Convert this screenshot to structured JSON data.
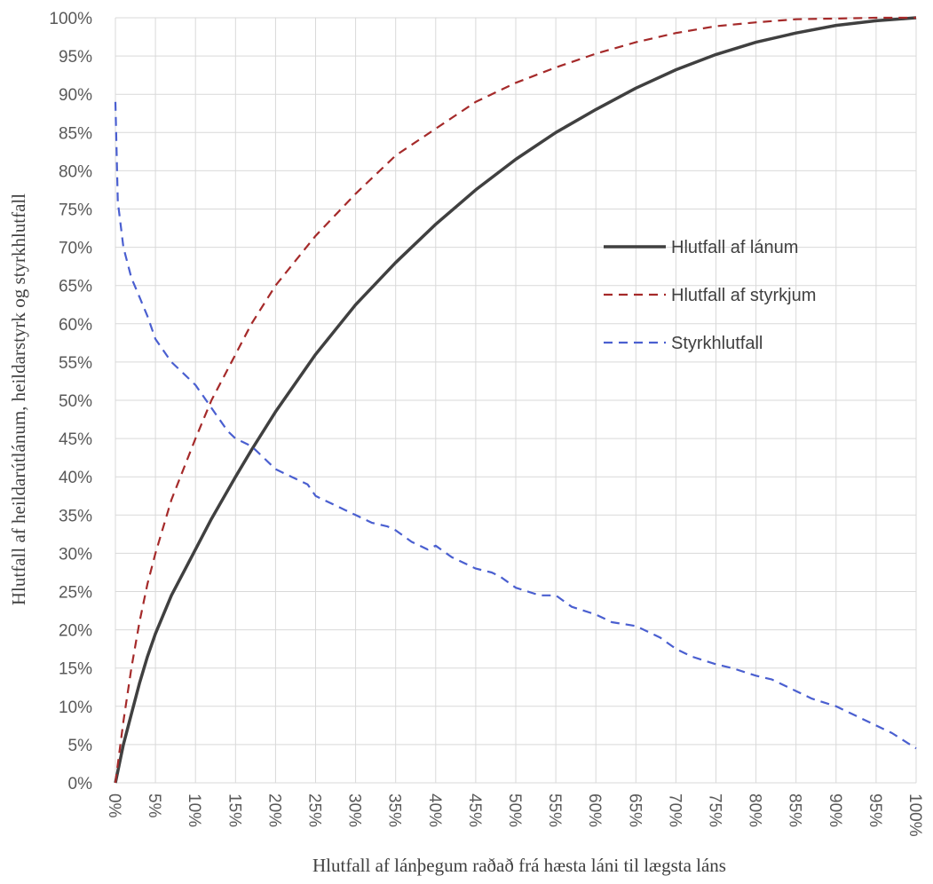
{
  "chart_data": {
    "type": "line",
    "title": "",
    "xlabel": "Hlutfall af lánþegum raðað frá hæsta láni til lægsta láns",
    "ylabel": "Hlutfall af heildarútlánum, heildarstyrk og styrkhlutfall",
    "xlim": [
      0,
      100
    ],
    "ylim": [
      0,
      100
    ],
    "x_unit": "%",
    "y_unit": "%",
    "grid": true,
    "legend_position": "right",
    "x_ticks": [
      "0%",
      "5%",
      "10%",
      "15%",
      "20%",
      "25%",
      "30%",
      "35%",
      "40%",
      "45%",
      "50%",
      "55%",
      "60%",
      "65%",
      "70%",
      "75%",
      "80%",
      "85%",
      "90%",
      "95%",
      "100%"
    ],
    "y_ticks": [
      "0%",
      "5%",
      "10%",
      "15%",
      "20%",
      "25%",
      "30%",
      "35%",
      "40%",
      "45%",
      "50%",
      "55%",
      "60%",
      "65%",
      "70%",
      "75%",
      "80%",
      "85%",
      "90%",
      "95%",
      "100%"
    ],
    "series": [
      {
        "name": "Hlutfall af lánum",
        "color": "#404040",
        "dash": "solid",
        "x": [
          0,
          1,
          2,
          3,
          4,
          5,
          7,
          10,
          12,
          15,
          17,
          20,
          25,
          30,
          35,
          40,
          45,
          50,
          55,
          60,
          65,
          70,
          75,
          80,
          85,
          90,
          95,
          100
        ],
        "y": [
          0,
          5,
          9,
          13,
          16.5,
          19.5,
          24.5,
          30.5,
          34.5,
          40,
          43.5,
          48.5,
          56,
          62.5,
          68,
          73,
          77.5,
          81.5,
          85,
          88,
          90.8,
          93.2,
          95.2,
          96.8,
          98,
          99,
          99.6,
          100
        ]
      },
      {
        "name": "Hlutfall af styrkjum",
        "color": "#a52a2a",
        "dash": "dashed",
        "x": [
          0,
          1,
          2,
          3,
          4,
          5,
          7,
          10,
          12,
          15,
          17,
          20,
          25,
          30,
          35,
          40,
          45,
          50,
          55,
          60,
          65,
          70,
          75,
          80,
          85,
          90,
          95,
          100
        ],
        "y": [
          0,
          8,
          15,
          21,
          26,
          30,
          37,
          45,
          50,
          56,
          60,
          65,
          71.5,
          77,
          82,
          85.5,
          89,
          91.5,
          93.5,
          95.3,
          96.8,
          98,
          98.9,
          99.4,
          99.8,
          99.9,
          100,
          100
        ]
      },
      {
        "name": "Styrkhlutfall",
        "color": "#4a5fd0",
        "dash": "dashed",
        "x": [
          0,
          0.3,
          1,
          2,
          3,
          4,
          5,
          7,
          8,
          10,
          12,
          14,
          15,
          17,
          18,
          20,
          22,
          24,
          25,
          27,
          30,
          32,
          34,
          35,
          37,
          39,
          40,
          42,
          45,
          47,
          48,
          50,
          53,
          55,
          57,
          60,
          62,
          65,
          67,
          68,
          70,
          72,
          75,
          77,
          80,
          82,
          85,
          87,
          90,
          92,
          95,
          97,
          100
        ],
        "y": [
          89,
          76,
          70,
          66,
          63.5,
          61,
          58,
          55,
          54,
          52,
          49,
          46,
          45,
          44,
          43,
          41,
          40,
          39,
          37.5,
          36.5,
          35,
          34,
          33.5,
          33,
          31.5,
          30.5,
          31,
          29.5,
          28,
          27.5,
          27,
          25.5,
          24.5,
          24.5,
          23,
          22,
          21,
          20.5,
          19.5,
          19,
          17.5,
          16.5,
          15.5,
          15,
          14,
          13.5,
          12,
          11,
          10,
          9,
          7.5,
          6.5,
          4.5
        ]
      }
    ]
  }
}
